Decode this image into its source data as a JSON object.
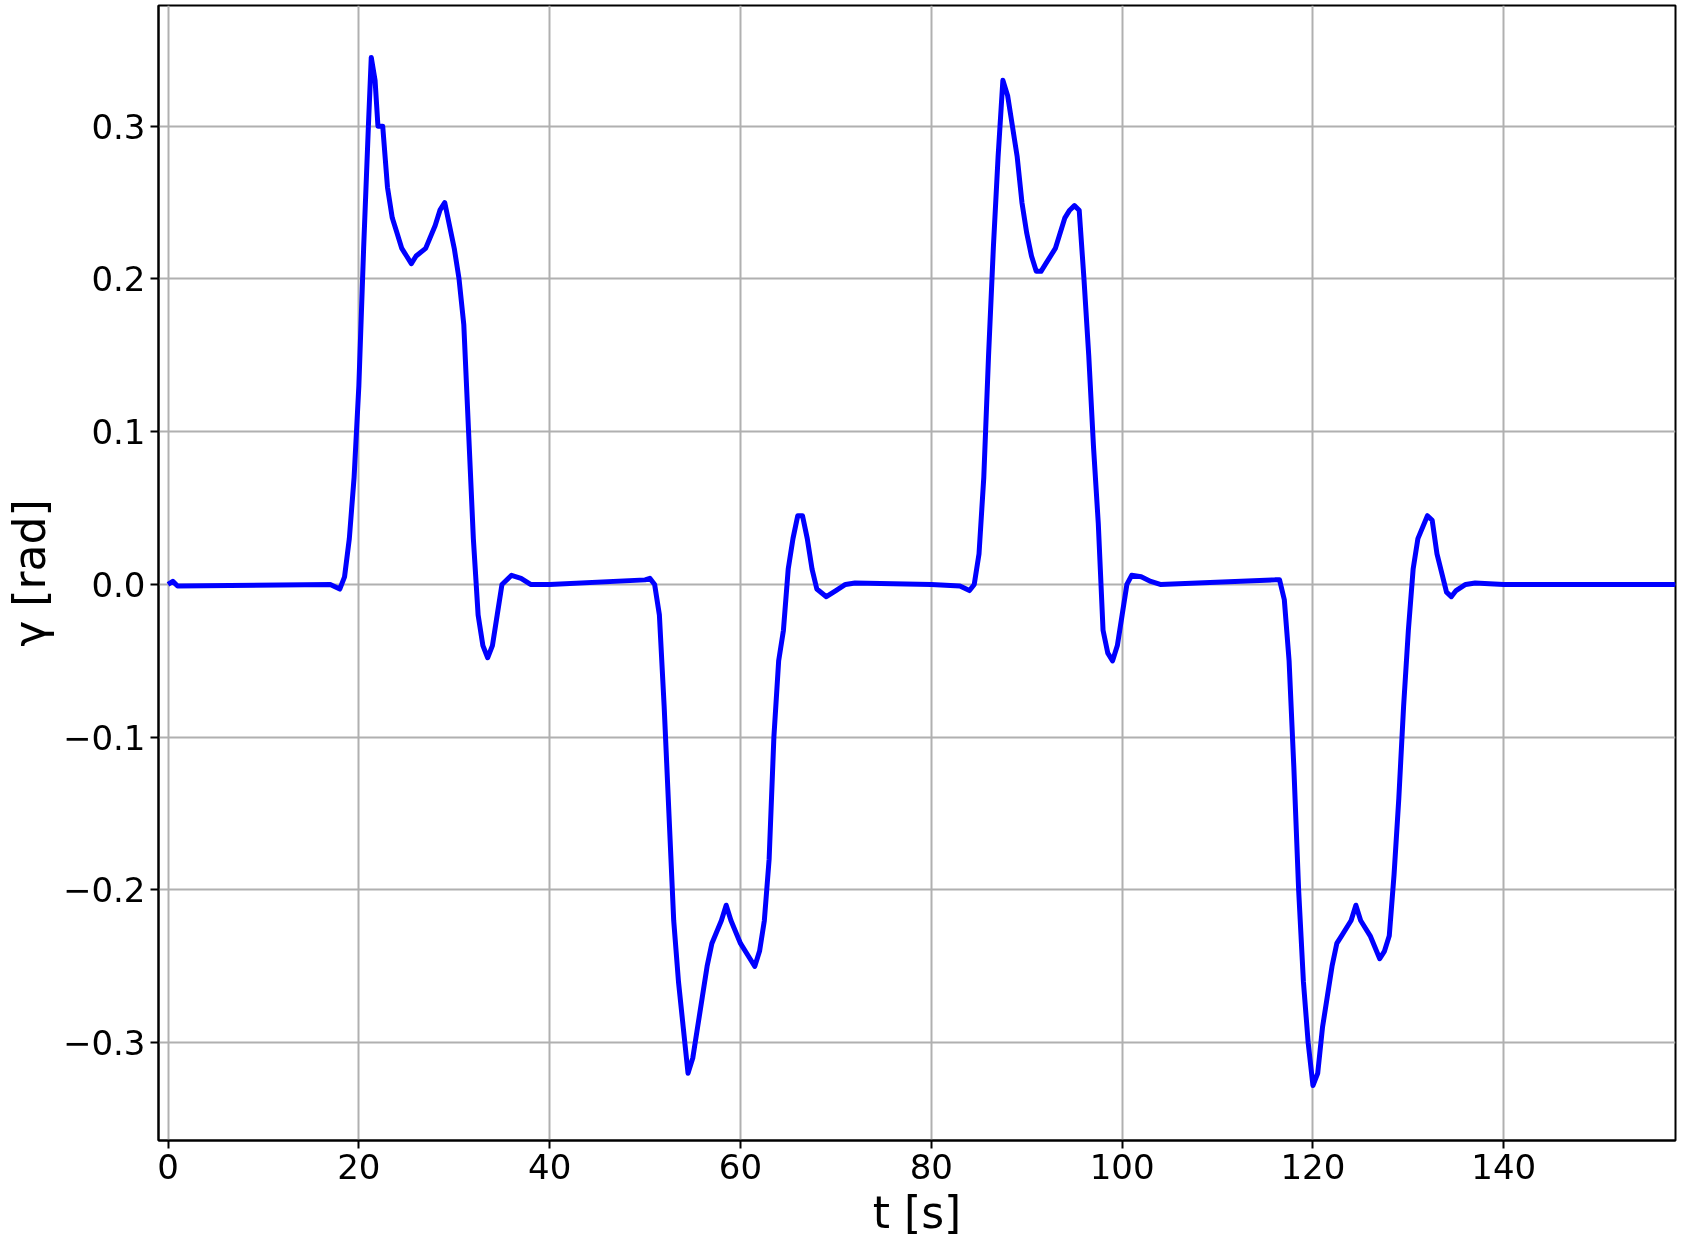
{
  "chart_data": {
    "type": "line",
    "xlabel": "t [s]",
    "ylabel": "γ [rad]",
    "xlim": [
      -1,
      158
    ],
    "ylim": [
      -0.364,
      0.379
    ],
    "xticks": [
      0,
      20,
      40,
      60,
      80,
      100,
      120,
      140
    ],
    "yticks": [
      {
        "value": -0.3,
        "label": "−0.3"
      },
      {
        "value": -0.2,
        "label": "−0.2"
      },
      {
        "value": -0.1,
        "label": "−0.1"
      },
      {
        "value": 0.0,
        "label": "0.0"
      },
      {
        "value": 0.1,
        "label": "0.1"
      },
      {
        "value": 0.2,
        "label": "0.2"
      },
      {
        "value": 0.3,
        "label": "0.3"
      }
    ],
    "grid": true,
    "line_style": "solid",
    "marker": "none",
    "x": [
      0,
      0.5,
      1,
      17,
      18,
      18.5,
      19,
      19.5,
      20,
      20.5,
      21,
      21.3,
      21.7,
      22,
      22.5,
      23,
      23.5,
      24,
      24.5,
      25,
      25.5,
      26,
      27,
      28,
      28.5,
      29,
      29.5,
      30,
      30.5,
      31,
      31.5,
      32,
      32.5,
      33,
      33.5,
      34,
      34.5,
      35,
      36,
      37,
      38,
      40,
      50,
      50.5,
      51,
      51.5,
      52,
      52.5,
      53,
      53.5,
      54,
      54.5,
      55,
      55.5,
      56,
      56.5,
      57,
      58,
      58.5,
      59,
      60,
      61,
      61.5,
      62,
      62.5,
      63,
      63.5,
      64,
      64.5,
      65,
      65.5,
      66,
      66.5,
      67,
      67.5,
      68,
      69,
      70,
      71,
      72,
      80,
      83,
      84,
      84.5,
      85,
      85.5,
      86,
      86.5,
      87,
      87.5,
      88,
      88.5,
      89,
      89.5,
      90,
      90.5,
      91,
      91.5,
      92,
      93,
      94,
      94.5,
      95,
      95.5,
      96,
      96.5,
      97,
      97.5,
      98,
      98.5,
      99,
      99.5,
      100,
      100.5,
      101,
      102,
      103,
      104,
      116,
      116.5,
      117,
      117.5,
      118,
      118.5,
      119,
      119.5,
      120,
      120.5,
      121,
      121.5,
      122,
      122.5,
      123,
      124,
      124.5,
      125,
      126,
      127,
      127.5,
      128,
      128.5,
      129,
      129.5,
      130,
      130.5,
      131,
      132,
      132.5,
      133,
      134,
      134.5,
      135,
      136,
      137,
      140,
      150,
      158
    ],
    "series": [
      {
        "color": "#0000ff",
        "values": [
          0,
          0.002,
          -0.001,
          0,
          -0.003,
          0.005,
          0.03,
          0.07,
          0.13,
          0.22,
          0.3,
          0.345,
          0.33,
          0.3,
          0.3,
          0.26,
          0.24,
          0.23,
          0.22,
          0.215,
          0.21,
          0.215,
          0.22,
          0.235,
          0.245,
          0.25,
          0.235,
          0.22,
          0.2,
          0.17,
          0.1,
          0.03,
          -0.02,
          -0.04,
          -0.048,
          -0.04,
          -0.02,
          0,
          0.006,
          0.004,
          0,
          0,
          0.003,
          0.004,
          0,
          -0.02,
          -0.08,
          -0.15,
          -0.22,
          -0.26,
          -0.29,
          -0.32,
          -0.31,
          -0.29,
          -0.27,
          -0.25,
          -0.235,
          -0.22,
          -0.21,
          -0.22,
          -0.235,
          -0.245,
          -0.25,
          -0.24,
          -0.22,
          -0.18,
          -0.1,
          -0.05,
          -0.03,
          0.01,
          0.03,
          0.045,
          0.045,
          0.03,
          0.01,
          -0.003,
          -0.008,
          -0.004,
          0,
          0.001,
          0,
          -0.001,
          -0.004,
          0,
          0.02,
          0.07,
          0.15,
          0.22,
          0.28,
          0.33,
          0.32,
          0.3,
          0.28,
          0.25,
          0.23,
          0.215,
          0.205,
          0.205,
          0.21,
          0.22,
          0.24,
          0.245,
          0.248,
          0.245,
          0.2,
          0.15,
          0.09,
          0.04,
          -0.03,
          -0.045,
          -0.05,
          -0.04,
          -0.02,
          0,
          0.006,
          0.005,
          0.002,
          0,
          0.003,
          0.003,
          -0.01,
          -0.05,
          -0.12,
          -0.2,
          -0.26,
          -0.3,
          -0.328,
          -0.32,
          -0.29,
          -0.27,
          -0.25,
          -0.235,
          -0.23,
          -0.22,
          -0.21,
          -0.22,
          -0.23,
          -0.245,
          -0.24,
          -0.23,
          -0.19,
          -0.14,
          -0.08,
          -0.03,
          0.01,
          0.03,
          0.045,
          0.042,
          0.02,
          -0.005,
          -0.008,
          -0.004,
          0,
          0.001,
          0,
          0,
          0
        ]
      }
    ]
  }
}
